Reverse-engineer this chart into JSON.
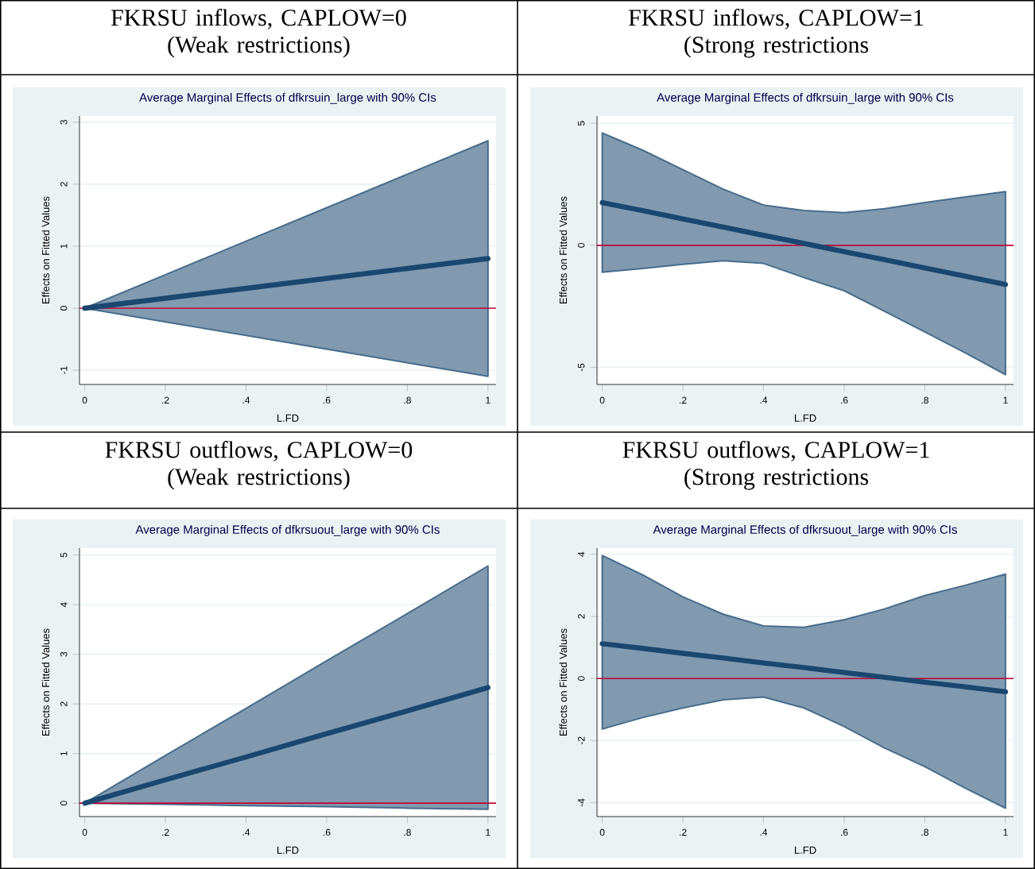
{
  "chart_data": [
    {
      "type": "line",
      "title": "FKRSU inflows, CAPLOW=0 (Weak restrictions)",
      "subtitle": "Average Marginal Effects of dfkrsuin_large with 90% CIs",
      "xlabel": "L.FD",
      "ylabel": "Effects on Fitted Values",
      "x": [
        0,
        0.2,
        0.4,
        0.6,
        0.8,
        1
      ],
      "series": [
        {
          "color": "#1a476f",
          "values": [
            0,
            0.16,
            0.32,
            0.48,
            0.64,
            0.8
          ],
          "upper": [
            0,
            0.54,
            1.08,
            1.62,
            2.16,
            2.7
          ],
          "lower": [
            0,
            -0.22,
            -0.44,
            -0.66,
            -0.88,
            -1.1
          ]
        }
      ],
      "xlim": [
        -0.013,
        1.02
      ],
      "ylim": [
        -1.23,
        3.1
      ],
      "xticks": [
        0,
        {
          "value": 0.2,
          "label": ".2"
        },
        {
          "value": 0.4,
          "label": ".4"
        },
        {
          "value": 0.6,
          "label": ".6"
        },
        {
          "value": 0.8,
          "label": ".8"
        },
        1
      ],
      "yticks": [
        -1,
        0,
        1,
        2,
        3
      ],
      "grid": "y",
      "ref_lines": [
        {
          "axis": "y",
          "value": 0,
          "color": "#c10534"
        }
      ]
    },
    {
      "type": "line",
      "title": "FKRSU inflows, CAPLOW=1 (Strong restrictions",
      "subtitle": "Average Marginal Effects of dfkrsuin_large with 90% CIs",
      "xlabel": "L.FD",
      "ylabel": "Effects on Fitted Values",
      "x": [
        0,
        0.1,
        0.2,
        0.3,
        0.4,
        0.5,
        0.6,
        0.7,
        0.8,
        0.9,
        1
      ],
      "series": [
        {
          "color": "#1a476f",
          "values": [
            1.75,
            1.42,
            1.08,
            0.75,
            0.41,
            0.08,
            -0.26,
            -0.59,
            -0.93,
            -1.26,
            -1.6
          ],
          "upper": [
            4.6,
            3.9,
            3.1,
            2.3,
            1.65,
            1.43,
            1.34,
            1.5,
            1.75,
            1.98,
            2.2
          ],
          "lower": [
            -1.1,
            -0.95,
            -0.78,
            -0.63,
            -0.74,
            -1.32,
            -1.86,
            -2.7,
            -3.55,
            -4.4,
            -5.3
          ]
        }
      ],
      "xlim": [
        -0.013,
        1.02
      ],
      "ylim": [
        -5.7,
        5.3
      ],
      "xticks": [
        0,
        {
          "value": 0.2,
          "label": ".2"
        },
        {
          "value": 0.4,
          "label": ".4"
        },
        {
          "value": 0.6,
          "label": ".6"
        },
        {
          "value": 0.8,
          "label": ".8"
        },
        1
      ],
      "yticks": [
        -5,
        0,
        5
      ],
      "grid": "y",
      "ref_lines": [
        {
          "axis": "y",
          "value": 0,
          "color": "#c10534"
        }
      ]
    },
    {
      "type": "line",
      "title": "FKRSU outflows, CAPLOW=0 (Weak restrictions)",
      "subtitle": "Average Marginal Effects of dfkrsuout_large with 90% CIs",
      "xlabel": "L.FD",
      "ylabel": "Effects on Fitted Values",
      "x": [
        0,
        0.2,
        0.4,
        0.6,
        0.8,
        1
      ],
      "series": [
        {
          "color": "#1a476f",
          "values": [
            0,
            0.47,
            0.93,
            1.4,
            1.86,
            2.33
          ],
          "upper": [
            0,
            0.96,
            1.91,
            2.87,
            3.82,
            4.78
          ],
          "lower": [
            0,
            -0.02,
            -0.05,
            -0.07,
            -0.1,
            -0.12
          ]
        }
      ],
      "xlim": [
        -0.013,
        1.02
      ],
      "ylim": [
        -0.27,
        5.14
      ],
      "xticks": [
        0,
        {
          "value": 0.2,
          "label": ".2"
        },
        {
          "value": 0.4,
          "label": ".4"
        },
        {
          "value": 0.6,
          "label": ".6"
        },
        {
          "value": 0.8,
          "label": ".8"
        },
        1
      ],
      "yticks": [
        0,
        1,
        2,
        3,
        4,
        5
      ],
      "grid": "y",
      "ref_lines": [
        {
          "axis": "y",
          "value": 0,
          "color": "#c10534"
        }
      ]
    },
    {
      "type": "line",
      "title": "FKRSU outflows, CAPLOW=1 (Strong restrictions",
      "subtitle": "Average Marginal Effects of dfkrsuout_large with 90% CIs",
      "xlabel": "L.FD",
      "ylabel": "Effects on Fitted Values",
      "x": [
        0,
        0.1,
        0.2,
        0.3,
        0.4,
        0.5,
        0.6,
        0.7,
        0.8,
        0.9,
        1
      ],
      "series": [
        {
          "color": "#1a476f",
          "values": [
            1.12,
            0.97,
            0.81,
            0.66,
            0.5,
            0.35,
            0.19,
            0.04,
            -0.12,
            -0.27,
            -0.43
          ],
          "upper": [
            3.96,
            3.34,
            2.63,
            2.07,
            1.69,
            1.65,
            1.89,
            2.24,
            2.67,
            3.0,
            3.36
          ],
          "lower": [
            -1.63,
            -1.26,
            -0.95,
            -0.69,
            -0.6,
            -0.95,
            -1.55,
            -2.24,
            -2.84,
            -3.53,
            -4.18
          ]
        }
      ],
      "xlim": [
        -0.013,
        1.02
      ],
      "ylim": [
        -4.45,
        4.2
      ],
      "xticks": [
        0,
        {
          "value": 0.2,
          "label": ".2"
        },
        {
          "value": 0.4,
          "label": ".4"
        },
        {
          "value": 0.6,
          "label": ".6"
        },
        {
          "value": 0.8,
          "label": ".8"
        },
        1
      ],
      "yticks": [
        -4,
        -2,
        0,
        2,
        4
      ],
      "grid": "y",
      "ref_lines": [
        {
          "axis": "y",
          "value": 0,
          "color": "#c10534"
        }
      ]
    }
  ]
}
